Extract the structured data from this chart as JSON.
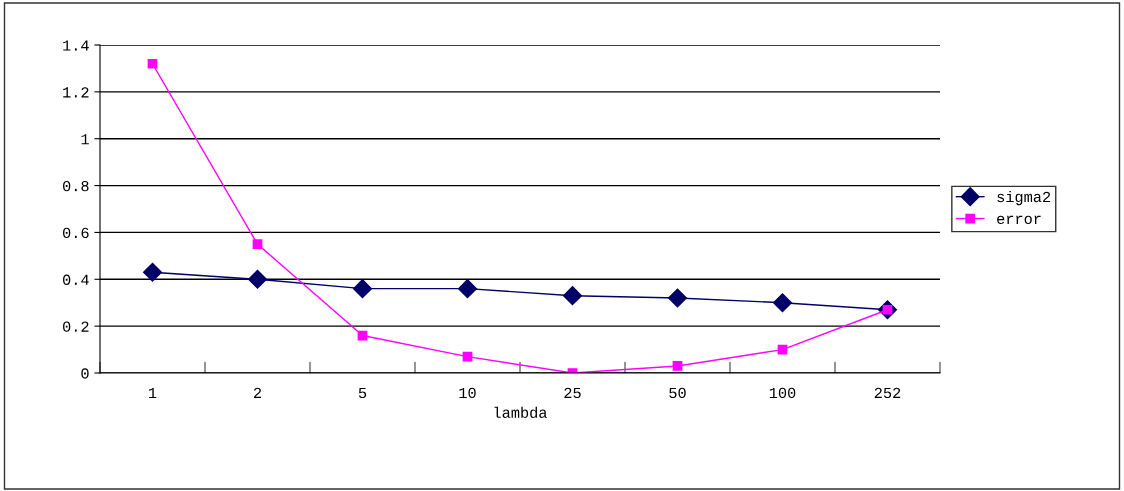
{
  "chart_data": {
    "type": "line",
    "xlabel": "lambda",
    "categories": [
      "1",
      "2",
      "5",
      "10",
      "25",
      "50",
      "100",
      "252"
    ],
    "series": [
      {
        "name": "sigma2",
        "color": "#000066",
        "marker": "diamond",
        "values": [
          0.43,
          0.4,
          0.36,
          0.36,
          0.33,
          0.32,
          0.3,
          0.27
        ]
      },
      {
        "name": "error",
        "color": "#ff00ff",
        "marker": "square",
        "values": [
          1.32,
          0.55,
          0.16,
          0.07,
          0.0,
          0.03,
          0.1,
          0.27
        ]
      }
    ],
    "ylim": [
      0,
      1.4
    ],
    "yticks": [
      0,
      0.2,
      0.4,
      0.6,
      0.8,
      1,
      1.2,
      1.4
    ],
    "grid": "y",
    "legend": "right",
    "line_style": "solid"
  }
}
